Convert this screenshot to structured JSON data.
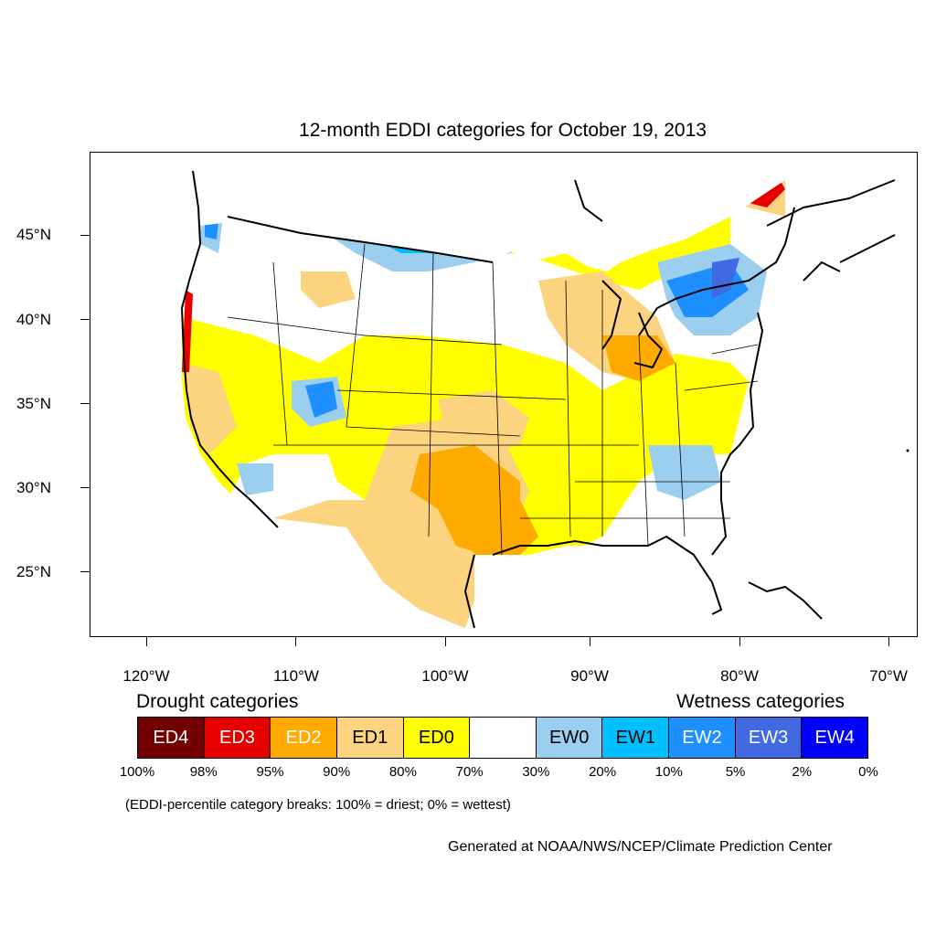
{
  "map": {
    "title": "12-month EDDI categories for October 19, 2013",
    "lat_labels": [
      "45°N",
      "40°N",
      "35°N",
      "30°N",
      "25°N"
    ],
    "lon_labels": [
      "120°W",
      "110°W",
      "100°W",
      "90°W",
      "80°W",
      "70°W"
    ]
  },
  "legend": {
    "drought_heading": "Drought categories",
    "wetness_heading": "Wetness categories",
    "categories": [
      {
        "label": "ED4",
        "color": "#730000",
        "text_color": "#ffffff"
      },
      {
        "label": "ED3",
        "color": "#e60000",
        "text_color": "#ffffff"
      },
      {
        "label": "ED2",
        "color": "#ffaa00",
        "text_color": "#ffffff"
      },
      {
        "label": "ED1",
        "color": "#fcd37f",
        "text_color": "#000000"
      },
      {
        "label": "ED0",
        "color": "#ffff00",
        "text_color": "#000000"
      },
      {
        "label": "",
        "color": "#ffffff",
        "text_color": "#000000"
      },
      {
        "label": "EW0",
        "color": "#9ccfef",
        "text_color": "#000000"
      },
      {
        "label": "EW1",
        "color": "#00bfff",
        "text_color": "#000000"
      },
      {
        "label": "EW2",
        "color": "#1e8fff",
        "text_color": "#ffffff"
      },
      {
        "label": "EW3",
        "color": "#4169e1",
        "text_color": "#ffffff"
      },
      {
        "label": "EW4",
        "color": "#0000ff",
        "text_color": "#ffffff"
      }
    ],
    "percentiles": [
      "100%",
      "98%",
      "95%",
      "90%",
      "80%",
      "70%",
      "30%",
      "20%",
      "10%",
      "5%",
      "2%",
      "0%"
    ]
  },
  "note": "(EDDI-percentile category breaks: 100% = driest; 0% = wettest)",
  "credit": "Generated at NOAA/NWS/NCEP/Climate Prediction Center"
}
